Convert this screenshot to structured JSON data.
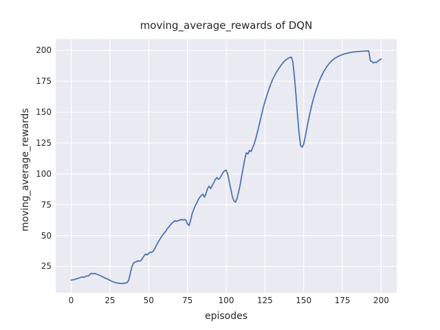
{
  "chart_data": {
    "type": "line",
    "title": "moving_average_rewards of DQN",
    "xlabel": "episodes",
    "ylabel": "moving_average_rewards",
    "x_ticks": [
      0,
      25,
      50,
      75,
      100,
      125,
      150,
      175,
      200
    ],
    "y_ticks": [
      25,
      50,
      75,
      100,
      125,
      150,
      175,
      200
    ],
    "xlim": [
      -10,
      210
    ],
    "ylim": [
      3.5,
      209.1
    ],
    "grid": true,
    "legend_position": "none",
    "colors": {
      "line": "#4c72b0",
      "plot_background": "#eaeaf2",
      "grid": "#ffffff",
      "text": "#262626",
      "figure_background": "#ffffff"
    },
    "series": [
      {
        "name": "moving average reward of DQN",
        "points": [
          [
            0,
            13.8
          ],
          [
            2,
            14.3
          ],
          [
            4,
            15.1
          ],
          [
            6,
            15.9
          ],
          [
            7,
            16.4
          ],
          [
            8,
            16.1
          ],
          [
            9,
            16.6
          ],
          [
            10,
            17.3
          ],
          [
            11,
            17.1
          ],
          [
            12,
            18.3
          ],
          [
            13,
            19.4
          ],
          [
            14,
            18.9
          ],
          [
            15,
            19.3
          ],
          [
            16,
            18.9
          ],
          [
            17,
            18.4
          ],
          [
            18,
            17.9
          ],
          [
            19,
            17.3
          ],
          [
            20,
            16.7
          ],
          [
            22,
            15.5
          ],
          [
            24,
            14.3
          ],
          [
            26,
            13.0
          ],
          [
            28,
            12.0
          ],
          [
            30,
            11.4
          ],
          [
            32,
            11.1
          ],
          [
            34,
            11.2
          ],
          [
            35,
            11.5
          ],
          [
            36,
            11.8
          ],
          [
            37,
            13.5
          ],
          [
            38,
            18.5
          ],
          [
            39,
            24.0
          ],
          [
            40,
            27.2
          ],
          [
            41,
            28.4
          ],
          [
            42,
            28.7
          ],
          [
            43,
            29.6
          ],
          [
            44,
            29.1
          ],
          [
            45,
            29.7
          ],
          [
            46,
            31.5
          ],
          [
            47,
            33.5
          ],
          [
            48,
            35.0
          ],
          [
            49,
            34.2
          ],
          [
            50,
            35.5
          ],
          [
            51,
            36.5
          ],
          [
            52,
            36.2
          ],
          [
            53,
            37.5
          ],
          [
            54,
            39.5
          ],
          [
            55,
            42.0
          ],
          [
            56,
            44.5
          ],
          [
            57,
            46.5
          ],
          [
            58,
            48.5
          ],
          [
            59,
            50.5
          ],
          [
            60,
            52.0
          ],
          [
            61,
            53.5
          ],
          [
            62,
            55.5
          ],
          [
            63,
            57.0
          ],
          [
            64,
            58.5
          ],
          [
            65,
            60.0
          ],
          [
            66,
            61.0
          ],
          [
            67,
            62.0
          ],
          [
            68,
            61.5
          ],
          [
            69,
            62.0
          ],
          [
            70,
            62.5
          ],
          [
            71,
            63.0
          ],
          [
            72,
            62.5
          ],
          [
            73,
            63.0
          ],
          [
            74,
            62.5
          ],
          [
            75,
            59.5
          ],
          [
            76,
            58.0
          ],
          [
            77,
            62.0
          ],
          [
            78,
            67.5
          ],
          [
            79,
            71.0
          ],
          [
            80,
            74.0
          ],
          [
            81,
            76.5
          ],
          [
            82,
            79.0
          ],
          [
            83,
            81.0
          ],
          [
            84,
            82.5
          ],
          [
            85,
            83.5
          ],
          [
            86,
            81.0
          ],
          [
            87,
            84.0
          ],
          [
            88,
            88.0
          ],
          [
            89,
            90.0
          ],
          [
            90,
            88.0
          ],
          [
            91,
            90.5
          ],
          [
            92,
            93.0
          ],
          [
            93,
            95.5
          ],
          [
            94,
            97.0
          ],
          [
            95,
            95.5
          ],
          [
            96,
            96.5
          ],
          [
            97,
            99.0
          ],
          [
            98,
            101.0
          ],
          [
            99,
            102.5
          ],
          [
            100,
            103.0
          ],
          [
            101,
            99.5
          ],
          [
            102,
            93.5
          ],
          [
            103,
            87.5
          ],
          [
            104,
            81.5
          ],
          [
            105,
            78.0
          ],
          [
            106,
            77.0
          ],
          [
            107,
            80.0
          ],
          [
            108,
            85.0
          ],
          [
            109,
            91.0
          ],
          [
            110,
            98.0
          ],
          [
            111,
            105.0
          ],
          [
            112,
            112.0
          ],
          [
            113,
            117.0
          ],
          [
            114,
            116.0
          ],
          [
            115,
            119.0
          ],
          [
            116,
            118.0
          ],
          [
            117,
            121.0
          ],
          [
            118,
            124.0
          ],
          [
            119,
            128.0
          ],
          [
            120,
            133.0
          ],
          [
            121,
            138.0
          ],
          [
            122,
            143.5
          ],
          [
            123,
            149.0
          ],
          [
            124,
            154.0
          ],
          [
            125,
            158.5
          ],
          [
            126,
            162.5
          ],
          [
            127,
            166.5
          ],
          [
            128,
            170.0
          ],
          [
            129,
            173.5
          ],
          [
            130,
            176.5
          ],
          [
            131,
            179.0
          ],
          [
            132,
            181.5
          ],
          [
            133,
            183.5
          ],
          [
            134,
            185.5
          ],
          [
            135,
            187.3
          ],
          [
            136,
            189.0
          ],
          [
            137,
            190.5
          ],
          [
            138,
            191.8
          ],
          [
            139,
            192.8
          ],
          [
            140,
            193.6
          ],
          [
            141,
            194.2
          ],
          [
            142,
            194.6
          ],
          [
            143,
            191.0
          ],
          [
            144,
            179.0
          ],
          [
            145,
            164.0
          ],
          [
            146,
            148.0
          ],
          [
            147,
            133.0
          ],
          [
            148,
            123.0
          ],
          [
            149,
            121.5
          ],
          [
            150,
            124.0
          ],
          [
            151,
            130.0
          ],
          [
            152,
            136.5
          ],
          [
            153,
            143.0
          ],
          [
            154,
            149.0
          ],
          [
            155,
            154.5
          ],
          [
            156,
            159.5
          ],
          [
            157,
            164.0
          ],
          [
            158,
            168.0
          ],
          [
            159,
            171.5
          ],
          [
            160,
            175.0
          ],
          [
            161,
            178.0
          ],
          [
            162,
            180.5
          ],
          [
            163,
            183.0
          ],
          [
            164,
            185.0
          ],
          [
            165,
            187.0
          ],
          [
            166,
            188.7
          ],
          [
            167,
            190.2
          ],
          [
            168,
            191.5
          ],
          [
            169,
            192.6
          ],
          [
            170,
            193.5
          ],
          [
            171,
            194.3
          ],
          [
            172,
            195.0
          ],
          [
            173,
            195.6
          ],
          [
            174,
            196.1
          ],
          [
            175,
            196.6
          ],
          [
            176,
            197.0
          ],
          [
            177,
            197.4
          ],
          [
            178,
            197.7
          ],
          [
            179,
            198.0
          ],
          [
            180,
            198.3
          ],
          [
            181,
            198.5
          ],
          [
            182,
            198.7
          ],
          [
            183,
            198.9
          ],
          [
            184,
            199.0
          ],
          [
            185,
            199.1
          ],
          [
            186,
            199.2
          ],
          [
            187,
            199.3
          ],
          [
            188,
            199.4
          ],
          [
            189,
            199.4
          ],
          [
            190,
            199.5
          ],
          [
            191,
            199.5
          ],
          [
            192,
            199.5
          ],
          [
            193,
            191.5
          ],
          [
            194,
            191.0
          ],
          [
            195,
            189.8
          ],
          [
            196,
            190.5
          ],
          [
            197,
            190.2
          ],
          [
            198,
            191.5
          ],
          [
            199,
            192.3
          ],
          [
            200,
            193.0
          ]
        ]
      }
    ]
  }
}
